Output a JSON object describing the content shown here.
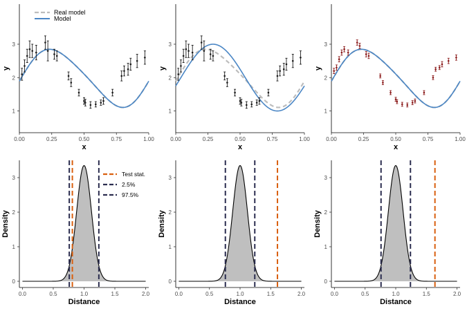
{
  "colors": {
    "real_model": "#bdbdbd",
    "model": "#4a86c5",
    "obs_black": "#1a1a1a",
    "obs_red": "#8b1a1a",
    "test_stat": "#d95f0e",
    "quantile": "#2b2d4f",
    "density_fill": "#bfbfbf"
  },
  "chart_data": [
    {
      "type": "line",
      "panel": "top-left",
      "xlabel": "x",
      "ylabel": "y",
      "xlim": [
        0,
        1
      ],
      "ylim": [
        0.35,
        4.2
      ],
      "xticks": [
        "0.00",
        "0.25",
        "0.50",
        "0.75",
        "1.00"
      ],
      "yticks": [
        "1",
        "2",
        "3"
      ],
      "legend": {
        "position": "top-left",
        "entries": [
          "Real model",
          "Model"
        ]
      },
      "series": [
        {
          "name": "Real model",
          "function": "2 + 0.85*sin(2*pi*(x-0.02)) + 0.1*sin(4*pi*x)"
        },
        {
          "name": "Model",
          "function": "2 + 0.85*sin(2*pi*(x-0.02)) + 0.1*sin(4*pi*x)"
        }
      ],
      "point_color": "obs_black",
      "points": [
        {
          "x": 0.02,
          "y": 2.1,
          "err": 0.18
        },
        {
          "x": 0.04,
          "y": 2.35,
          "err": 0.18
        },
        {
          "x": 0.06,
          "y": 2.65,
          "err": 0.2
        },
        {
          "x": 0.08,
          "y": 2.85,
          "err": 0.25
        },
        {
          "x": 0.1,
          "y": 2.8,
          "err": 0.2
        },
        {
          "x": 0.13,
          "y": 2.75,
          "err": 0.22
        },
        {
          "x": 0.2,
          "y": 3.05,
          "err": 0.2
        },
        {
          "x": 0.22,
          "y": 2.8,
          "err": 0.3
        },
        {
          "x": 0.27,
          "y": 2.7,
          "err": 0.15
        },
        {
          "x": 0.29,
          "y": 2.65,
          "err": 0.15
        },
        {
          "x": 0.38,
          "y": 2.05,
          "err": 0.12
        },
        {
          "x": 0.4,
          "y": 1.85,
          "err": 0.12
        },
        {
          "x": 0.46,
          "y": 1.55,
          "err": 0.1
        },
        {
          "x": 0.5,
          "y": 1.3,
          "err": 0.1
        },
        {
          "x": 0.51,
          "y": 1.25,
          "err": 0.1
        },
        {
          "x": 0.55,
          "y": 1.18,
          "err": 0.1
        },
        {
          "x": 0.59,
          "y": 1.2,
          "err": 0.08
        },
        {
          "x": 0.63,
          "y": 1.25,
          "err": 0.08
        },
        {
          "x": 0.65,
          "y": 1.3,
          "err": 0.1
        },
        {
          "x": 0.72,
          "y": 1.55,
          "err": 0.1
        },
        {
          "x": 0.79,
          "y": 2.05,
          "err": 0.15
        },
        {
          "x": 0.81,
          "y": 2.2,
          "err": 0.15
        },
        {
          "x": 0.84,
          "y": 2.25,
          "err": 0.18
        },
        {
          "x": 0.86,
          "y": 2.4,
          "err": 0.18
        },
        {
          "x": 0.91,
          "y": 2.5,
          "err": 0.2
        },
        {
          "x": 0.97,
          "y": 2.6,
          "err": 0.2
        }
      ]
    },
    {
      "type": "line",
      "panel": "top-middle",
      "xlabel": "x",
      "ylabel": "y",
      "xlim": [
        0,
        1
      ],
      "ylim": [
        0.35,
        4.2
      ],
      "xticks": [
        "0.00",
        "0.25",
        "0.50",
        "0.75",
        "1.00"
      ],
      "yticks": [
        "1",
        "2",
        "3"
      ],
      "series": [
        {
          "name": "Real model",
          "function": "2 + 0.85*sin(2*pi*(x-0.02)) + 0.1*sin(4*pi*x)"
        },
        {
          "name": "Model",
          "function": "2 + 1.0*sin(2*pi*(x-0.04))"
        }
      ],
      "point_color": "obs_black",
      "points": [
        {
          "x": 0.02,
          "y": 2.1,
          "err": 0.18
        },
        {
          "x": 0.04,
          "y": 2.35,
          "err": 0.18
        },
        {
          "x": 0.06,
          "y": 2.65,
          "err": 0.2
        },
        {
          "x": 0.08,
          "y": 2.85,
          "err": 0.25
        },
        {
          "x": 0.1,
          "y": 2.8,
          "err": 0.2
        },
        {
          "x": 0.13,
          "y": 2.75,
          "err": 0.22
        },
        {
          "x": 0.2,
          "y": 3.05,
          "err": 0.2
        },
        {
          "x": 0.22,
          "y": 2.8,
          "err": 0.3
        },
        {
          "x": 0.27,
          "y": 2.7,
          "err": 0.15
        },
        {
          "x": 0.29,
          "y": 2.65,
          "err": 0.15
        },
        {
          "x": 0.38,
          "y": 2.05,
          "err": 0.12
        },
        {
          "x": 0.4,
          "y": 1.85,
          "err": 0.12
        },
        {
          "x": 0.46,
          "y": 1.55,
          "err": 0.1
        },
        {
          "x": 0.5,
          "y": 1.3,
          "err": 0.1
        },
        {
          "x": 0.51,
          "y": 1.25,
          "err": 0.1
        },
        {
          "x": 0.55,
          "y": 1.18,
          "err": 0.1
        },
        {
          "x": 0.59,
          "y": 1.2,
          "err": 0.08
        },
        {
          "x": 0.63,
          "y": 1.25,
          "err": 0.08
        },
        {
          "x": 0.65,
          "y": 1.3,
          "err": 0.1
        },
        {
          "x": 0.72,
          "y": 1.55,
          "err": 0.1
        },
        {
          "x": 0.79,
          "y": 2.05,
          "err": 0.15
        },
        {
          "x": 0.81,
          "y": 2.2,
          "err": 0.15
        },
        {
          "x": 0.84,
          "y": 2.25,
          "err": 0.18
        },
        {
          "x": 0.86,
          "y": 2.4,
          "err": 0.18
        },
        {
          "x": 0.91,
          "y": 2.5,
          "err": 0.2
        },
        {
          "x": 0.97,
          "y": 2.6,
          "err": 0.2
        }
      ]
    },
    {
      "type": "line",
      "panel": "top-right",
      "xlabel": "x",
      "ylabel": "y",
      "xlim": [
        0,
        1
      ],
      "ylim": [
        0.35,
        4.2
      ],
      "xticks": [
        "0.00",
        "0.25",
        "0.50",
        "0.75",
        "1.00"
      ],
      "yticks": [
        "1",
        "2",
        "3"
      ],
      "series": [
        {
          "name": "Real model",
          "function": "2 + 0.85*sin(2*pi*(x-0.02)) + 0.1*sin(4*pi*x)"
        },
        {
          "name": "Model",
          "function": "2 + 0.85*sin(2*pi*(x-0.02)) + 0.1*sin(4*pi*x)"
        }
      ],
      "point_color": "obs_red",
      "points": [
        {
          "x": 0.02,
          "y": 2.2,
          "err": 0.08
        },
        {
          "x": 0.04,
          "y": 2.3,
          "err": 0.08
        },
        {
          "x": 0.06,
          "y": 2.55,
          "err": 0.08
        },
        {
          "x": 0.08,
          "y": 2.75,
          "err": 0.08
        },
        {
          "x": 0.1,
          "y": 2.85,
          "err": 0.08
        },
        {
          "x": 0.13,
          "y": 2.75,
          "err": 0.08
        },
        {
          "x": 0.2,
          "y": 3.05,
          "err": 0.08
        },
        {
          "x": 0.22,
          "y": 2.95,
          "err": 0.08
        },
        {
          "x": 0.27,
          "y": 2.7,
          "err": 0.08
        },
        {
          "x": 0.29,
          "y": 2.65,
          "err": 0.08
        },
        {
          "x": 0.38,
          "y": 2.05,
          "err": 0.06
        },
        {
          "x": 0.4,
          "y": 1.85,
          "err": 0.06
        },
        {
          "x": 0.46,
          "y": 1.55,
          "err": 0.06
        },
        {
          "x": 0.5,
          "y": 1.35,
          "err": 0.06
        },
        {
          "x": 0.51,
          "y": 1.28,
          "err": 0.06
        },
        {
          "x": 0.55,
          "y": 1.2,
          "err": 0.06
        },
        {
          "x": 0.59,
          "y": 1.18,
          "err": 0.06
        },
        {
          "x": 0.63,
          "y": 1.25,
          "err": 0.06
        },
        {
          "x": 0.65,
          "y": 1.3,
          "err": 0.06
        },
        {
          "x": 0.72,
          "y": 1.55,
          "err": 0.06
        },
        {
          "x": 0.79,
          "y": 2.0,
          "err": 0.06
        },
        {
          "x": 0.81,
          "y": 2.25,
          "err": 0.06
        },
        {
          "x": 0.84,
          "y": 2.3,
          "err": 0.06
        },
        {
          "x": 0.86,
          "y": 2.4,
          "err": 0.08
        },
        {
          "x": 0.91,
          "y": 2.5,
          "err": 0.08
        },
        {
          "x": 0.97,
          "y": 2.6,
          "err": 0.08
        }
      ]
    },
    {
      "type": "area",
      "panel": "bottom-left",
      "xlabel": "Distance",
      "ylabel": "Density",
      "xlim": [
        -0.05,
        2.05
      ],
      "ylim": [
        -0.18,
        3.5
      ],
      "xticks": [
        "0.0",
        "0.5",
        "1.0",
        "1.5",
        "2.0"
      ],
      "yticks": [
        "0",
        "1",
        "2",
        "3"
      ],
      "density": {
        "mean": 1.0,
        "sd": 0.12,
        "peak": 3.35,
        "range": [
          0,
          2
        ]
      },
      "legend": {
        "position": "top-right",
        "entries": [
          "Test stat.",
          "2.5%",
          "97.5%"
        ]
      },
      "vlines": [
        {
          "name": "2.5%",
          "x": 0.76
        },
        {
          "name": "97.5%",
          "x": 1.24
        },
        {
          "name": "Test stat.",
          "x": 0.81
        }
      ]
    },
    {
      "type": "area",
      "panel": "bottom-middle",
      "xlabel": "Distance",
      "ylabel": "Density",
      "xlim": [
        -0.05,
        2.05
      ],
      "ylim": [
        -0.18,
        3.5
      ],
      "xticks": [
        "0.0",
        "0.5",
        "1.0",
        "1.5",
        "2.0"
      ],
      "yticks": [
        "0",
        "1",
        "2",
        "3"
      ],
      "density": {
        "mean": 1.0,
        "sd": 0.12,
        "peak": 3.35,
        "range": [
          0,
          2
        ]
      },
      "vlines": [
        {
          "name": "2.5%",
          "x": 0.76
        },
        {
          "name": "97.5%",
          "x": 1.24
        },
        {
          "name": "Test stat.",
          "x": 1.61
        }
      ]
    },
    {
      "type": "area",
      "panel": "bottom-right",
      "xlabel": "Distance",
      "ylabel": "Density",
      "xlim": [
        -0.05,
        2.05
      ],
      "ylim": [
        -0.18,
        3.5
      ],
      "xticks": [
        "0.0",
        "0.5",
        "1.0",
        "1.5",
        "2.0"
      ],
      "yticks": [
        "0",
        "1",
        "2",
        "3"
      ],
      "density": {
        "mean": 1.0,
        "sd": 0.12,
        "peak": 3.35,
        "range": [
          0,
          2
        ]
      },
      "vlines": [
        {
          "name": "2.5%",
          "x": 0.76
        },
        {
          "name": "97.5%",
          "x": 1.24
        },
        {
          "name": "Test stat.",
          "x": 1.64
        }
      ]
    }
  ]
}
